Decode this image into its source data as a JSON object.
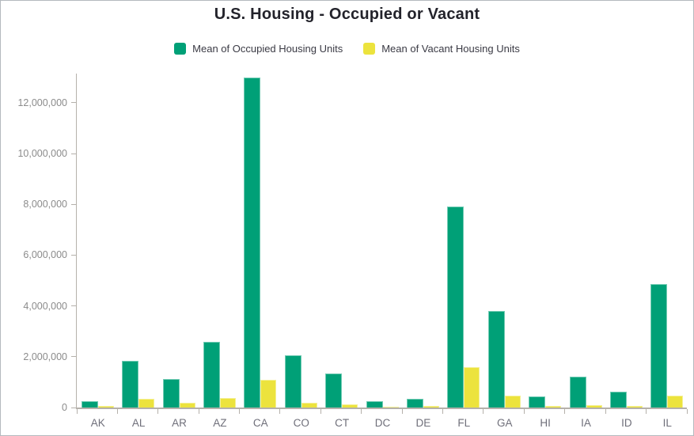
{
  "title": "U.S. Housing - Occupied or Vacant",
  "legend": [
    {
      "label": "Mean of Occupied Housing Units",
      "color": "#00a077"
    },
    {
      "label": "Mean of Vacant Housing Units",
      "color": "#ece33d"
    }
  ],
  "colors": {
    "occupied": "#00a077",
    "vacant": "#ece33d",
    "axis": "#b5b1ab",
    "title_text": "#23232b",
    "axis_label_text": "#8b8b8b",
    "category_text": "#6f6f7a"
  },
  "chart_data": {
    "type": "bar",
    "title": "U.S. Housing - Occupied or Vacant",
    "xlabel": "",
    "ylabel": "",
    "grid": false,
    "legend_position": "top",
    "categories": [
      "AK",
      "AL",
      "AR",
      "AZ",
      "CA",
      "CO",
      "CT",
      "DC",
      "DE",
      "FL",
      "GA",
      "HI",
      "IA",
      "ID",
      "IL"
    ],
    "series": [
      {
        "name": "Mean of Occupied Housing Units",
        "color": "#00a077",
        "values": [
          250000,
          1850000,
          1130000,
          2600000,
          13000000,
          2070000,
          1350000,
          260000,
          340000,
          7900000,
          3800000,
          430000,
          1230000,
          620000,
          4850000
        ]
      },
      {
        "name": "Mean of Vacant Housing Units",
        "color": "#ece33d",
        "values": [
          60000,
          350000,
          180000,
          370000,
          1080000,
          200000,
          110000,
          30000,
          55000,
          1600000,
          470000,
          55000,
          100000,
          55000,
          460000
        ]
      }
    ],
    "ylim": [
      0,
      13150000
    ],
    "y_ticks": [
      0,
      2000000,
      4000000,
      6000000,
      8000000,
      10000000,
      12000000
    ],
    "y_tick_labels": [
      "0",
      "2,000,000",
      "4,000,000",
      "6,000,000",
      "8,000,000",
      "10,000,000",
      "12,000,000"
    ]
  }
}
